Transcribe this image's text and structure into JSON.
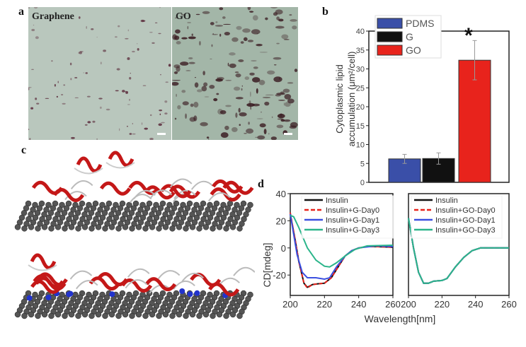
{
  "panel_labels": {
    "a": "a",
    "b": "b",
    "c": "c",
    "d": "d"
  },
  "panel_a": {
    "left_caption": "Graphene",
    "right_caption": "GO"
  },
  "chart_data": [
    {
      "type": "bar",
      "panel": "b",
      "categories": [
        "PDMS",
        "G",
        "GO"
      ],
      "values": [
        6.2,
        6.3,
        32.3
      ],
      "errors": [
        1.2,
        1.5,
        5.2
      ],
      "colors": [
        "#3a4fa8",
        "#111111",
        "#e8231c"
      ],
      "legend": [
        "PDMS",
        "G",
        "GO"
      ],
      "legend_placement": "top-left",
      "annotation": "*",
      "ylabel_line1": "Cytoplasmic lipid",
      "ylabel_line2": "accumulation (μm²/cell)",
      "ylim": [
        0,
        40
      ],
      "yticks": [
        "0",
        "5",
        "10",
        "15",
        "20",
        "25",
        "30",
        "35",
        "40"
      ]
    },
    {
      "type": "line",
      "panel": "d-left",
      "xlim": [
        200,
        260
      ],
      "ylim": [
        -35,
        40
      ],
      "xticks": [
        "200",
        "220",
        "240",
        "260"
      ],
      "yticks": [
        "-20",
        "0",
        "20",
        "40"
      ],
      "ylabel": "CD[mdeg]",
      "legend_placement": "top-right",
      "series": [
        {
          "name": "Insulin",
          "color": "#111111",
          "dash": false,
          "x": [
            200,
            203,
            205,
            208,
            210,
            213,
            216,
            220,
            224,
            228,
            232,
            236,
            240,
            245,
            250,
            260
          ],
          "y": [
            25,
            5,
            -10,
            -26,
            -29,
            -27,
            -26.5,
            -26,
            -22,
            -14,
            -6,
            -2,
            0,
            1,
            1,
            0.5
          ]
        },
        {
          "name": "Insulin+G-Day0",
          "color": "#e8231c",
          "dash": true,
          "x": [
            200,
            203,
            205,
            208,
            210,
            213,
            216,
            220,
            224,
            228,
            232,
            236,
            240,
            245,
            250,
            260
          ],
          "y": [
            26,
            5,
            -10,
            -26,
            -29.5,
            -27,
            -26.5,
            -26,
            -22,
            -14,
            -6,
            -2,
            0,
            1,
            1,
            0.5
          ]
        },
        {
          "name": "Insulin+G-Day1",
          "color": "#3b4fe0",
          "dash": false,
          "x": [
            200,
            204,
            207,
            210,
            215,
            220,
            223,
            227,
            232,
            236,
            240,
            250,
            260
          ],
          "y": [
            25,
            -5,
            -18,
            -22,
            -22,
            -23,
            -22,
            -14,
            -6,
            -2,
            0,
            1.5,
            1
          ]
        },
        {
          "name": "Insulin+G-Day3",
          "color": "#2bb58a",
          "dash": false,
          "x": [
            200,
            202,
            205,
            210,
            215,
            220,
            223,
            227,
            232,
            238,
            245,
            260
          ],
          "y": [
            24,
            23,
            15,
            0,
            -9,
            -13.5,
            -14,
            -11,
            -6,
            -1,
            1.5,
            2
          ]
        }
      ]
    },
    {
      "type": "line",
      "panel": "d-right",
      "xlim": [
        200,
        260
      ],
      "ylim": [
        -35,
        40
      ],
      "xticks": [
        "200",
        "220",
        "240",
        "260"
      ],
      "xlabel": "Wavelength[nm]",
      "legend_placement": "top-right",
      "series": [
        {
          "name": "Insulin",
          "color": "#111111",
          "dash": false,
          "x": [
            200,
            203,
            206,
            209,
            212,
            215,
            220,
            223,
            228,
            233,
            238,
            243,
            260
          ],
          "y": [
            22,
            0,
            -18,
            -26,
            -26,
            -24.5,
            -24,
            -22.5,
            -14,
            -7,
            -2,
            0,
            0
          ]
        },
        {
          "name": "Insulin+GO-Day0",
          "color": "#e8231c",
          "dash": true,
          "x": [
            200,
            203,
            206,
            209,
            212,
            215,
            220,
            223,
            228,
            233,
            238,
            243,
            260
          ],
          "y": [
            22,
            0,
            -18,
            -26,
            -26,
            -24.5,
            -24,
            -22.5,
            -14,
            -7,
            -2,
            0,
            0
          ]
        },
        {
          "name": "Insulin+GO-Day1",
          "color": "#3b4fe0",
          "dash": false,
          "x": [
            200,
            203,
            206,
            209,
            212,
            215,
            220,
            223,
            228,
            233,
            238,
            243,
            260
          ],
          "y": [
            22,
            0,
            -18,
            -26,
            -26,
            -24.5,
            -24,
            -22.5,
            -14,
            -7,
            -2,
            0,
            0
          ]
        },
        {
          "name": "Insulin+GO-Day3",
          "color": "#2bb58a",
          "dash": false,
          "x": [
            200,
            203,
            206,
            209,
            212,
            215,
            220,
            223,
            228,
            233,
            238,
            243,
            260
          ],
          "y": [
            22,
            0,
            -18,
            -26,
            -26,
            -24.5,
            -24,
            -22.5,
            -14,
            -7,
            -2,
            0,
            0
          ]
        }
      ]
    }
  ]
}
